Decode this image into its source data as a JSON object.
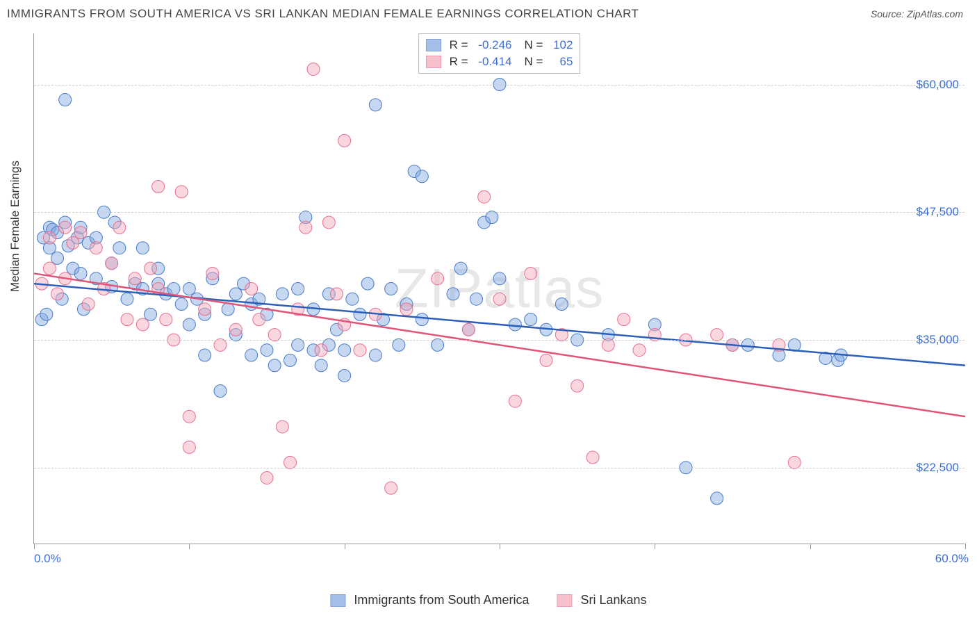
{
  "title": "IMMIGRANTS FROM SOUTH AMERICA VS SRI LANKAN MEDIAN FEMALE EARNINGS CORRELATION CHART",
  "source_label": "Source: ZipAtlas.com",
  "watermark": "ZIPatlas",
  "yaxis_title": "Median Female Earnings",
  "chart": {
    "type": "scatter",
    "xlim": [
      0,
      60
    ],
    "ylim": [
      15000,
      65000
    ],
    "x_ticks": [
      0,
      10,
      20,
      30,
      40,
      50,
      60
    ],
    "x_tick_labels": [
      "0.0%",
      "",
      "",
      "",
      "",
      "",
      "60.0%"
    ],
    "y_gridlines": [
      22500,
      35000,
      47500,
      60000
    ],
    "y_tick_labels": [
      "$22,500",
      "$35,000",
      "$47,500",
      "$60,000"
    ],
    "grid_color": "#cccccc",
    "axis_color": "#999999",
    "background_color": "#ffffff",
    "marker_radius": 9,
    "marker_opacity": 0.45,
    "series": [
      {
        "name": "Immigrants from South America",
        "fill_color": "#7ea6e0",
        "stroke_color": "#4a7bc8",
        "line_color": "#2d5fb8",
        "stats": {
          "R": "-0.246",
          "N": "102"
        },
        "regression": {
          "x1": 0,
          "y1": 40500,
          "x2": 60,
          "y2": 32500
        },
        "points": [
          [
            0.5,
            37000
          ],
          [
            0.6,
            45000
          ],
          [
            0.8,
            37500
          ],
          [
            1,
            44000
          ],
          [
            1,
            46000
          ],
          [
            1.2,
            45800
          ],
          [
            1.5,
            43000
          ],
          [
            1.5,
            45500
          ],
          [
            1.8,
            39000
          ],
          [
            2,
            58500
          ],
          [
            2,
            46500
          ],
          [
            2.2,
            44200
          ],
          [
            2.5,
            42000
          ],
          [
            2.8,
            45000
          ],
          [
            3,
            41500
          ],
          [
            3,
            46000
          ],
          [
            3.2,
            38000
          ],
          [
            3.5,
            44500
          ],
          [
            4,
            41000
          ],
          [
            4,
            45000
          ],
          [
            4.5,
            47500
          ],
          [
            5,
            40200
          ],
          [
            5,
            42500
          ],
          [
            5.2,
            46500
          ],
          [
            5.5,
            44000
          ],
          [
            6,
            39000
          ],
          [
            6.5,
            40500
          ],
          [
            7,
            44000
          ],
          [
            7,
            40000
          ],
          [
            7.5,
            37500
          ],
          [
            8,
            42000
          ],
          [
            8,
            40500
          ],
          [
            8.5,
            39500
          ],
          [
            9,
            40000
          ],
          [
            9.5,
            38500
          ],
          [
            10,
            36500
          ],
          [
            10,
            40000
          ],
          [
            10.5,
            39000
          ],
          [
            11,
            37500
          ],
          [
            11,
            33500
          ],
          [
            11.5,
            41000
          ],
          [
            12,
            30000
          ],
          [
            12.5,
            38000
          ],
          [
            13,
            39500
          ],
          [
            13,
            35500
          ],
          [
            13.5,
            40500
          ],
          [
            14,
            33500
          ],
          [
            14,
            38500
          ],
          [
            14.5,
            39000
          ],
          [
            15,
            34000
          ],
          [
            15,
            37500
          ],
          [
            15.5,
            32500
          ],
          [
            16,
            39500
          ],
          [
            16.5,
            33000
          ],
          [
            17,
            34500
          ],
          [
            17,
            40000
          ],
          [
            17.5,
            47000
          ],
          [
            18,
            34000
          ],
          [
            18,
            38000
          ],
          [
            18.5,
            32500
          ],
          [
            19,
            34500
          ],
          [
            19,
            39500
          ],
          [
            19.5,
            36000
          ],
          [
            20,
            31500
          ],
          [
            20,
            34000
          ],
          [
            20.5,
            39000
          ],
          [
            21,
            37500
          ],
          [
            21.5,
            40500
          ],
          [
            22,
            33500
          ],
          [
            22,
            58000
          ],
          [
            22.5,
            37000
          ],
          [
            23,
            40000
          ],
          [
            23.5,
            34500
          ],
          [
            24,
            38500
          ],
          [
            24.5,
            51500
          ],
          [
            25,
            51000
          ],
          [
            25,
            37000
          ],
          [
            26,
            34500
          ],
          [
            27,
            39500
          ],
          [
            27.5,
            42000
          ],
          [
            28,
            36000
          ],
          [
            28.5,
            39000
          ],
          [
            29,
            46500
          ],
          [
            29.5,
            47000
          ],
          [
            30,
            60000
          ],
          [
            30,
            41000
          ],
          [
            31,
            36500
          ],
          [
            32,
            37000
          ],
          [
            33,
            36000
          ],
          [
            34,
            38500
          ],
          [
            35,
            35000
          ],
          [
            37,
            35500
          ],
          [
            40,
            36500
          ],
          [
            42,
            22500
          ],
          [
            44,
            19500
          ],
          [
            45,
            34500
          ],
          [
            46,
            34500
          ],
          [
            48,
            33500
          ],
          [
            49,
            34500
          ],
          [
            51,
            33200
          ],
          [
            51.8,
            33000
          ],
          [
            52,
            33500
          ]
        ]
      },
      {
        "name": "Sri Lankans",
        "fill_color": "#f4a6b8",
        "stroke_color": "#e76f8f",
        "line_color": "#e05577",
        "stats": {
          "R": "-0.414",
          "N": "65"
        },
        "regression": {
          "x1": 0,
          "y1": 41500,
          "x2": 60,
          "y2": 27500
        },
        "points": [
          [
            0.5,
            40500
          ],
          [
            1,
            45000
          ],
          [
            1,
            42000
          ],
          [
            1.5,
            39500
          ],
          [
            2,
            46000
          ],
          [
            2,
            41000
          ],
          [
            2.5,
            44500
          ],
          [
            3,
            45500
          ],
          [
            3.5,
            38500
          ],
          [
            4,
            44000
          ],
          [
            4.5,
            40000
          ],
          [
            5,
            42500
          ],
          [
            5.5,
            46000
          ],
          [
            6,
            37000
          ],
          [
            6.5,
            41000
          ],
          [
            7,
            36500
          ],
          [
            7.5,
            42000
          ],
          [
            8,
            40000
          ],
          [
            8,
            50000
          ],
          [
            8.5,
            37000
          ],
          [
            9,
            35000
          ],
          [
            9.5,
            49500
          ],
          [
            10,
            27500
          ],
          [
            10,
            24500
          ],
          [
            11,
            38000
          ],
          [
            11.5,
            41500
          ],
          [
            12,
            34500
          ],
          [
            13,
            36000
          ],
          [
            14,
            40000
          ],
          [
            14.5,
            37000
          ],
          [
            15,
            21500
          ],
          [
            15.5,
            35500
          ],
          [
            16,
            26500
          ],
          [
            16.5,
            23000
          ],
          [
            17,
            38000
          ],
          [
            17.5,
            46000
          ],
          [
            18,
            61500
          ],
          [
            18.5,
            34000
          ],
          [
            19,
            46500
          ],
          [
            19.5,
            39500
          ],
          [
            20,
            36500
          ],
          [
            20,
            54500
          ],
          [
            21,
            34000
          ],
          [
            22,
            37500
          ],
          [
            23,
            20500
          ],
          [
            24,
            38000
          ],
          [
            26,
            41000
          ],
          [
            28,
            36000
          ],
          [
            29,
            49000
          ],
          [
            30,
            39000
          ],
          [
            31,
            29000
          ],
          [
            32,
            41500
          ],
          [
            33,
            33000
          ],
          [
            34,
            35500
          ],
          [
            35,
            30500
          ],
          [
            36,
            23500
          ],
          [
            37,
            34500
          ],
          [
            38,
            37000
          ],
          [
            39,
            34000
          ],
          [
            40,
            35500
          ],
          [
            42,
            35000
          ],
          [
            44,
            35500
          ],
          [
            45,
            34500
          ],
          [
            48,
            34500
          ],
          [
            49,
            23000
          ]
        ]
      }
    ]
  },
  "bottom_legend": [
    {
      "label": "Immigrants from South America",
      "fill": "#7ea6e0",
      "stroke": "#4a7bc8"
    },
    {
      "label": "Sri Lankans",
      "fill": "#f4a6b8",
      "stroke": "#e76f8f"
    }
  ]
}
